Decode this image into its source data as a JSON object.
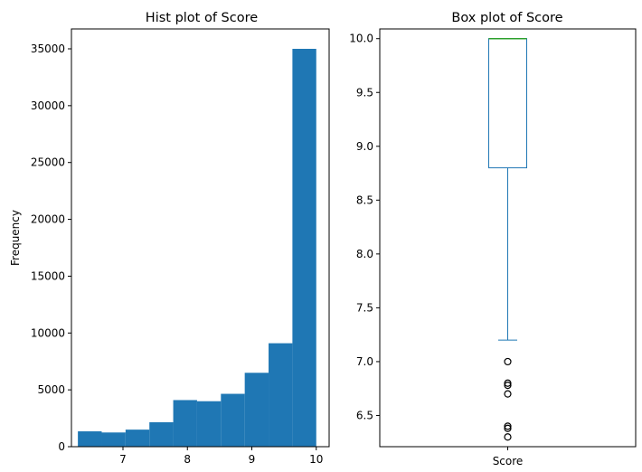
{
  "chart_data": [
    {
      "type": "bar",
      "subtype": "histogram",
      "title": "Hist plot of Score",
      "xlabel": "",
      "ylabel": "Frequency",
      "xlim": [
        6.2,
        10.2
      ],
      "ylim": [
        0,
        36750
      ],
      "bin_edges": [
        6.3,
        6.67,
        7.04,
        7.41,
        7.78,
        8.15,
        8.52,
        8.89,
        9.26,
        9.63,
        10.0
      ],
      "values": [
        1350,
        1250,
        1500,
        2150,
        4100,
        4000,
        4650,
        6500,
        9100,
        35000
      ],
      "color": "#1f77b4",
      "xticks": [
        7,
        8,
        9,
        10
      ],
      "yticks": [
        0,
        5000,
        10000,
        15000,
        20000,
        25000,
        30000,
        35000
      ],
      "xtick_labels": [
        "7",
        "8",
        "9",
        "10"
      ],
      "ytick_labels": [
        "0",
        "5000",
        "10000",
        "15000",
        "20000",
        "25000",
        "30000",
        "35000"
      ],
      "grid": false
    },
    {
      "type": "box",
      "title": "Box plot of Score",
      "xlabel": "",
      "ylabel": "",
      "categories": [
        "Score"
      ],
      "ylim": [
        6.21,
        10.09
      ],
      "box": {
        "whisker_low": 7.2,
        "q1": 8.8,
        "median": 10.0,
        "q3": 10.0,
        "whisker_high": 10.0
      },
      "outliers": [
        7.0,
        6.8,
        6.78,
        6.7,
        6.4,
        6.38,
        6.3
      ],
      "box_color": "#1f77b4",
      "median_color": "#2ca02c",
      "yticks": [
        6.5,
        7.0,
        7.5,
        8.0,
        8.5,
        9.0,
        9.5,
        10.0
      ],
      "ytick_labels": [
        "6.5",
        "7.0",
        "7.5",
        "8.0",
        "8.5",
        "9.0",
        "9.5",
        "10.0"
      ],
      "grid": false
    }
  ]
}
